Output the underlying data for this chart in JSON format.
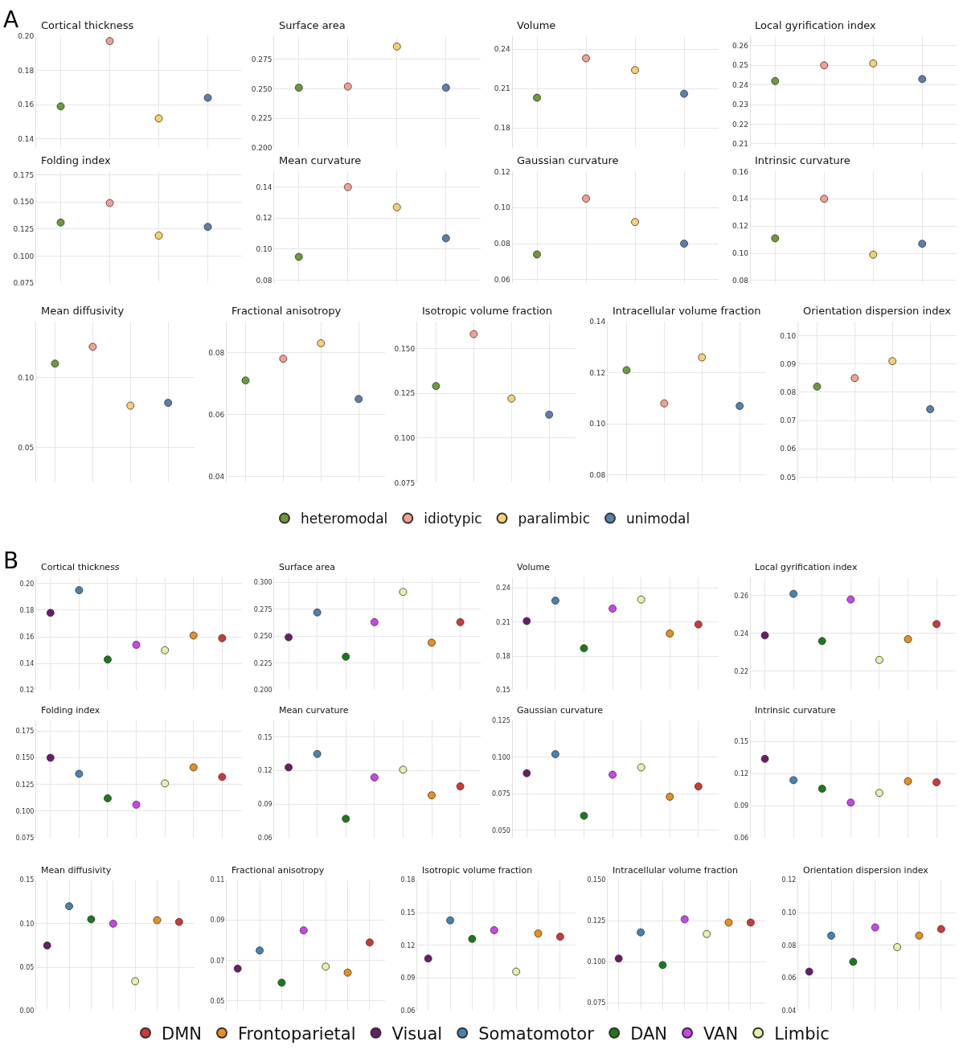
{
  "chart_data": [
    {
      "type": "scatter",
      "title": "Cortical thickness",
      "annotations": [
        "A"
      ],
      "categories": [
        null,
        null,
        null,
        null
      ],
      "ylim": [
        0.135,
        0.2
      ],
      "yticks": [
        0.14,
        0.16,
        0.18,
        {
          "value": 0.2,
          "label": "0.20"
        }
      ],
      "grid": true,
      "marker": "circle",
      "legend": "bottom",
      "series": [
        {
          "name": "heteromodal",
          "color": "#6a9a3a",
          "values": [
            0.159,
            null,
            null,
            null
          ]
        },
        {
          "name": "idiotypic",
          "color": "#f4a090",
          "values": [
            null,
            0.197,
            null,
            null
          ]
        },
        {
          "name": "paralimbic",
          "color": "#f8d070",
          "values": [
            null,
            null,
            0.152,
            null
          ]
        },
        {
          "name": "unimodal",
          "color": "#5a7fb0",
          "values": [
            null,
            null,
            null,
            0.164
          ]
        }
      ]
    },
    {
      "type": "scatter",
      "title": "Surface area",
      "categories": [
        null,
        null,
        null,
        null
      ],
      "ylim": [
        0.2,
        0.295
      ],
      "yticks": [
        {
          "value": 0.2,
          "label": "0.200"
        },
        0.225,
        {
          "value": 0.25,
          "label": "0.250"
        },
        0.275
      ],
      "grid": true,
      "marker": "circle",
      "series": [
        {
          "color": "#6a9a3a",
          "values": [
            0.251,
            null,
            null,
            null
          ]
        },
        {
          "color": "#f4a090",
          "values": [
            null,
            0.252,
            null,
            null
          ]
        },
        {
          "color": "#f8d070",
          "values": [
            null,
            null,
            0.286,
            null
          ]
        },
        {
          "color": "#5a7fb0",
          "values": [
            null,
            null,
            null,
            0.251
          ]
        }
      ]
    },
    {
      "type": "scatter",
      "title": "Volume",
      "categories": [
        null,
        null,
        null,
        null
      ],
      "ylim": [
        0.165,
        0.25
      ],
      "yticks": [
        0.18,
        0.21,
        0.24
      ],
      "grid": true,
      "marker": "circle",
      "series": [
        {
          "color": "#6a9a3a",
          "values": [
            0.203,
            null,
            null,
            null
          ]
        },
        {
          "color": "#f4a090",
          "values": [
            null,
            0.233,
            null,
            null
          ]
        },
        {
          "color": "#f8d070",
          "values": [
            null,
            null,
            0.224,
            null
          ]
        },
        {
          "color": "#5a7fb0",
          "values": [
            null,
            null,
            null,
            0.206
          ]
        }
      ]
    },
    {
      "type": "scatter",
      "title": "Local gyrification index",
      "categories": [
        null,
        null,
        null,
        null
      ],
      "ylim": [
        0.208,
        0.265
      ],
      "yticks": [
        0.21,
        0.22,
        0.23,
        0.24,
        0.25,
        0.26
      ],
      "grid": true,
      "marker": "circle",
      "series": [
        {
          "color": "#6a9a3a",
          "values": [
            0.242,
            null,
            null,
            null
          ]
        },
        {
          "color": "#f4a090",
          "values": [
            null,
            0.25,
            null,
            null
          ]
        },
        {
          "color": "#f8d070",
          "values": [
            null,
            null,
            0.251,
            null
          ]
        },
        {
          "color": "#5a7fb0",
          "values": [
            null,
            null,
            null,
            0.243
          ]
        }
      ]
    },
    {
      "type": "scatter",
      "title": "Folding index",
      "categories": [
        null,
        null,
        null,
        null
      ],
      "ylim": [
        0.075,
        0.178
      ],
      "yticks": [
        0.075,
        {
          "value": 0.1,
          "label": "0.100"
        },
        0.125,
        {
          "value": 0.15,
          "label": "0.150"
        },
        0.175
      ],
      "grid": true,
      "marker": "circle",
      "series": [
        {
          "color": "#6a9a3a",
          "values": [
            0.131,
            null,
            null,
            null
          ]
        },
        {
          "color": "#f4a090",
          "values": [
            null,
            0.149,
            null,
            null
          ]
        },
        {
          "color": "#f8d070",
          "values": [
            null,
            null,
            0.119,
            null
          ]
        },
        {
          "color": "#5a7fb0",
          "values": [
            null,
            null,
            null,
            0.127
          ]
        }
      ]
    },
    {
      "type": "scatter",
      "title": "Mean curvature",
      "categories": [
        null,
        null,
        null,
        null
      ],
      "ylim": [
        0.078,
        0.15
      ],
      "yticks": [
        0.08,
        {
          "value": 0.1,
          "label": "0.10"
        },
        0.12,
        0.14
      ],
      "grid": true,
      "marker": "circle",
      "series": [
        {
          "color": "#6a9a3a",
          "values": [
            0.095,
            null,
            null,
            null
          ]
        },
        {
          "color": "#f4a090",
          "values": [
            null,
            0.14,
            null,
            null
          ]
        },
        {
          "color": "#f8d070",
          "values": [
            null,
            null,
            0.127,
            null
          ]
        },
        {
          "color": "#5a7fb0",
          "values": [
            null,
            null,
            null,
            0.107
          ]
        }
      ]
    },
    {
      "type": "scatter",
      "title": "Gaussian curvature",
      "categories": [
        null,
        null,
        null,
        null
      ],
      "ylim": [
        0.058,
        0.12
      ],
      "yticks": [
        0.06,
        0.08,
        {
          "value": 0.1,
          "label": "0.10"
        },
        0.12
      ],
      "grid": true,
      "marker": "circle",
      "series": [
        {
          "color": "#6a9a3a",
          "values": [
            0.074,
            null,
            null,
            null
          ]
        },
        {
          "color": "#f4a090",
          "values": [
            null,
            0.105,
            null,
            null
          ]
        },
        {
          "color": "#f8d070",
          "values": [
            null,
            null,
            0.092,
            null
          ]
        },
        {
          "color": "#5a7fb0",
          "values": [
            null,
            null,
            null,
            0.08
          ]
        }
      ]
    },
    {
      "type": "scatter",
      "title": "Intrinsic curvature",
      "categories": [
        null,
        null,
        null,
        null
      ],
      "ylim": [
        0.078,
        0.16
      ],
      "yticks": [
        0.08,
        {
          "value": 0.1,
          "label": "0.10"
        },
        0.12,
        0.14,
        0.16
      ],
      "grid": true,
      "marker": "circle",
      "series": [
        {
          "color": "#6a9a3a",
          "values": [
            0.111,
            null,
            null,
            null
          ]
        },
        {
          "color": "#f4a090",
          "values": [
            null,
            0.14,
            null,
            null
          ]
        },
        {
          "color": "#f8d070",
          "values": [
            null,
            null,
            0.099,
            null
          ]
        },
        {
          "color": "#5a7fb0",
          "values": [
            null,
            null,
            null,
            0.107
          ]
        }
      ]
    },
    {
      "type": "scatter",
      "title": "Mean diffusivity",
      "categories": [
        null,
        null,
        null,
        null
      ],
      "ylim": [
        0.025,
        0.14
      ],
      "yticks": [
        0.05,
        {
          "value": 0.1,
          "label": "0.10"
        }
      ],
      "grid": true,
      "marker": "circle",
      "series": [
        {
          "color": "#6a9a3a",
          "values": [
            0.11,
            null,
            null,
            null
          ]
        },
        {
          "color": "#f4a090",
          "values": [
            null,
            0.122,
            null,
            null
          ]
        },
        {
          "color": "#f8d070",
          "values": [
            null,
            null,
            0.08,
            null
          ]
        },
        {
          "color": "#5a7fb0",
          "values": [
            null,
            null,
            null,
            0.082
          ]
        }
      ]
    },
    {
      "type": "scatter",
      "title": "Fractional anisotropy",
      "categories": [
        null,
        null,
        null,
        null
      ],
      "ylim": [
        0.038,
        0.09
      ],
      "yticks": [
        0.04,
        0.06,
        0.08
      ],
      "grid": true,
      "marker": "circle",
      "series": [
        {
          "color": "#6a9a3a",
          "values": [
            0.071,
            null,
            null,
            null
          ]
        },
        {
          "color": "#f4a090",
          "values": [
            null,
            0.078,
            null,
            null
          ]
        },
        {
          "color": "#f8d070",
          "values": [
            null,
            null,
            0.083,
            null
          ]
        },
        {
          "color": "#5a7fb0",
          "values": [
            null,
            null,
            null,
            0.065
          ]
        }
      ]
    },
    {
      "type": "scatter",
      "title": "Isotropic volume fraction",
      "categories": [
        null,
        null,
        null,
        null
      ],
      "ylim": [
        0.075,
        0.165
      ],
      "yticks": [
        0.075,
        {
          "value": 0.1,
          "label": "0.100"
        },
        0.125,
        {
          "value": 0.15,
          "label": "0.150"
        }
      ],
      "grid": true,
      "marker": "circle",
      "series": [
        {
          "color": "#6a9a3a",
          "values": [
            0.129,
            null,
            null,
            null
          ]
        },
        {
          "color": "#f4a090",
          "values": [
            null,
            0.158,
            null,
            null
          ]
        },
        {
          "color": "#f8d070",
          "values": [
            null,
            null,
            0.122,
            null
          ]
        },
        {
          "color": "#5a7fb0",
          "values": [
            null,
            null,
            null,
            0.113
          ]
        }
      ]
    },
    {
      "type": "scatter",
      "title": "Intracellular volume fraction",
      "categories": [
        null,
        null,
        null,
        null
      ],
      "ylim": [
        0.077,
        0.14
      ],
      "yticks": [
        0.08,
        {
          "value": 0.1,
          "label": "0.10"
        },
        0.12,
        0.14
      ],
      "grid": true,
      "marker": "circle",
      "series": [
        {
          "color": "#6a9a3a",
          "values": [
            0.121,
            null,
            null,
            null
          ]
        },
        {
          "color": "#f4a090",
          "values": [
            null,
            0.108,
            null,
            null
          ]
        },
        {
          "color": "#f8d070",
          "values": [
            null,
            null,
            0.126,
            null
          ]
        },
        {
          "color": "#5a7fb0",
          "values": [
            null,
            null,
            null,
            0.107
          ]
        }
      ]
    },
    {
      "type": "scatter",
      "title": "Orientation dispersion index",
      "categories": [
        null,
        null,
        null,
        null
      ],
      "ylim": [
        0.048,
        0.105
      ],
      "yticks": [
        0.05,
        0.06,
        0.07,
        0.08,
        0.09,
        {
          "value": 0.1,
          "label": "0.10"
        }
      ],
      "grid": true,
      "marker": "circle",
      "series": [
        {
          "color": "#6a9a3a",
          "values": [
            0.082,
            null,
            null,
            null
          ]
        },
        {
          "color": "#f4a090",
          "values": [
            null,
            0.085,
            null,
            null
          ]
        },
        {
          "color": "#f8d070",
          "values": [
            null,
            null,
            0.091,
            null
          ]
        },
        {
          "color": "#5a7fb0",
          "values": [
            null,
            null,
            null,
            0.074
          ]
        }
      ]
    },
    {
      "type": "scatter",
      "title": "Cortical thickness",
      "annotations": [
        "B"
      ],
      "categories": [
        null,
        null,
        null,
        null,
        null,
        null,
        null
      ],
      "ylim": [
        0.12,
        0.205
      ],
      "yticks": [
        0.12,
        0.14,
        0.16,
        0.18,
        {
          "value": 0.2,
          "label": "0.20"
        }
      ],
      "grid": true,
      "marker": "circle",
      "legend": "bottom",
      "series": [
        {
          "name": "DMN",
          "color": "#d03838",
          "values": [
            null,
            null,
            null,
            null,
            null,
            null,
            0.159
          ]
        },
        {
          "name": "Frontoparietal",
          "color": "#e8901a",
          "values": [
            null,
            null,
            null,
            null,
            null,
            0.161,
            null
          ]
        },
        {
          "name": "Visual",
          "color": "#6a1b6a",
          "values": [
            0.178,
            null,
            null,
            null,
            null,
            null,
            null
          ]
        },
        {
          "name": "Somatomotor",
          "color": "#4682b4",
          "values": [
            null,
            0.195,
            null,
            null,
            null,
            null,
            null
          ]
        },
        {
          "name": "DAN",
          "color": "#1a7a1a",
          "values": [
            null,
            null,
            0.143,
            null,
            null,
            null,
            null
          ]
        },
        {
          "name": "VAN",
          "color": "#cc44ee",
          "values": [
            null,
            null,
            null,
            0.154,
            null,
            null,
            null
          ]
        },
        {
          "name": "Limbic",
          "color": "#e2f2a8",
          "values": [
            null,
            null,
            null,
            null,
            0.15,
            null,
            null
          ]
        }
      ]
    },
    {
      "type": "scatter",
      "title": "Surface area",
      "categories": [
        null,
        null,
        null,
        null,
        null,
        null,
        null
      ],
      "ylim": [
        0.2,
        0.305
      ],
      "yticks": [
        {
          "value": 0.2,
          "label": "0.200"
        },
        0.225,
        {
          "value": 0.25,
          "label": "0.250"
        },
        0.275,
        {
          "value": 0.3,
          "label": "0.300"
        }
      ],
      "grid": true,
      "marker": "circle",
      "series": [
        {
          "color": "#d03838",
          "values": [
            null,
            null,
            null,
            null,
            null,
            null,
            0.263
          ]
        },
        {
          "color": "#e8901a",
          "values": [
            null,
            null,
            null,
            null,
            null,
            0.244,
            null
          ]
        },
        {
          "color": "#6a1b6a",
          "values": [
            0.249,
            null,
            null,
            null,
            null,
            null,
            null
          ]
        },
        {
          "color": "#4682b4",
          "values": [
            null,
            0.272,
            null,
            null,
            null,
            null,
            null
          ]
        },
        {
          "color": "#1a7a1a",
          "values": [
            null,
            null,
            0.231,
            null,
            null,
            null,
            null
          ]
        },
        {
          "color": "#cc44ee",
          "values": [
            null,
            null,
            null,
            0.263,
            null,
            null,
            null
          ]
        },
        {
          "color": "#e2f2a8",
          "values": [
            null,
            null,
            null,
            null,
            0.291,
            null,
            null
          ]
        }
      ]
    },
    {
      "type": "scatter",
      "title": "Volume",
      "categories": [
        null,
        null,
        null,
        null,
        null,
        null,
        null
      ],
      "ylim": [
        0.15,
        0.25
      ],
      "yticks": [
        0.15,
        0.18,
        0.21,
        0.24
      ],
      "grid": true,
      "marker": "circle",
      "series": [
        {
          "color": "#d03838",
          "values": [
            null,
            null,
            null,
            null,
            null,
            null,
            0.208
          ]
        },
        {
          "color": "#e8901a",
          "values": [
            null,
            null,
            null,
            null,
            null,
            0.2,
            null
          ]
        },
        {
          "color": "#6a1b6a",
          "values": [
            0.211,
            null,
            null,
            null,
            null,
            null,
            null
          ]
        },
        {
          "color": "#4682b4",
          "values": [
            null,
            0.229,
            null,
            null,
            null,
            null,
            null
          ]
        },
        {
          "color": "#1a7a1a",
          "values": [
            null,
            null,
            0.187,
            null,
            null,
            null,
            null
          ]
        },
        {
          "color": "#cc44ee",
          "values": [
            null,
            null,
            null,
            0.222,
            null,
            null,
            null
          ]
        },
        {
          "color": "#e2f2a8",
          "values": [
            null,
            null,
            null,
            null,
            0.23,
            null,
            null
          ]
        }
      ]
    },
    {
      "type": "scatter",
      "title": "Local gyrification index",
      "categories": [
        null,
        null,
        null,
        null,
        null,
        null,
        null
      ],
      "ylim": [
        0.21,
        0.27
      ],
      "yticks": [
        0.22,
        0.24,
        0.26
      ],
      "grid": true,
      "marker": "circle",
      "series": [
        {
          "color": "#d03838",
          "values": [
            null,
            null,
            null,
            null,
            null,
            null,
            0.245
          ]
        },
        {
          "color": "#e8901a",
          "values": [
            null,
            null,
            null,
            null,
            null,
            0.237,
            null
          ]
        },
        {
          "color": "#6a1b6a",
          "values": [
            0.239,
            null,
            null,
            null,
            null,
            null,
            null
          ]
        },
        {
          "color": "#4682b4",
          "values": [
            null,
            0.261,
            null,
            null,
            null,
            null,
            null
          ]
        },
        {
          "color": "#1a7a1a",
          "values": [
            null,
            null,
            0.236,
            null,
            null,
            null,
            null
          ]
        },
        {
          "color": "#cc44ee",
          "values": [
            null,
            null,
            null,
            0.258,
            null,
            null,
            null
          ]
        },
        {
          "color": "#e2f2a8",
          "values": [
            null,
            null,
            null,
            null,
            0.226,
            null,
            null
          ]
        }
      ]
    },
    {
      "type": "scatter",
      "title": "Folding index",
      "categories": [
        null,
        null,
        null,
        null,
        null,
        null,
        null
      ],
      "ylim": [
        0.075,
        0.185
      ],
      "yticks": [
        0.075,
        {
          "value": 0.1,
          "label": "0.100"
        },
        0.125,
        {
          "value": 0.15,
          "label": "0.150"
        },
        0.175
      ],
      "grid": true,
      "marker": "circle",
      "series": [
        {
          "color": "#d03838",
          "values": [
            null,
            null,
            null,
            null,
            null,
            null,
            0.132
          ]
        },
        {
          "color": "#e8901a",
          "values": [
            null,
            null,
            null,
            null,
            null,
            0.141,
            null
          ]
        },
        {
          "color": "#6a1b6a",
          "values": [
            0.15,
            null,
            null,
            null,
            null,
            null,
            null
          ]
        },
        {
          "color": "#4682b4",
          "values": [
            null,
            0.135,
            null,
            null,
            null,
            null,
            null
          ]
        },
        {
          "color": "#1a7a1a",
          "values": [
            null,
            null,
            0.112,
            null,
            null,
            null,
            null
          ]
        },
        {
          "color": "#cc44ee",
          "values": [
            null,
            null,
            null,
            0.106,
            null,
            null,
            null
          ]
        },
        {
          "color": "#e2f2a8",
          "values": [
            null,
            null,
            null,
            null,
            0.126,
            null,
            null
          ]
        }
      ]
    },
    {
      "type": "scatter",
      "title": "Mean curvature",
      "categories": [
        null,
        null,
        null,
        null,
        null,
        null,
        null
      ],
      "ylim": [
        0.06,
        0.165
      ],
      "yticks": [
        0.06,
        0.09,
        0.12,
        0.15
      ],
      "grid": true,
      "marker": "circle",
      "series": [
        {
          "color": "#d03838",
          "values": [
            null,
            null,
            null,
            null,
            null,
            null,
            0.106
          ]
        },
        {
          "color": "#e8901a",
          "values": [
            null,
            null,
            null,
            null,
            null,
            0.098,
            null
          ]
        },
        {
          "color": "#6a1b6a",
          "values": [
            0.123,
            null,
            null,
            null,
            null,
            null,
            null
          ]
        },
        {
          "color": "#4682b4",
          "values": [
            null,
            0.135,
            null,
            null,
            null,
            null,
            null
          ]
        },
        {
          "color": "#1a7a1a",
          "values": [
            null,
            null,
            0.077,
            null,
            null,
            null,
            null
          ]
        },
        {
          "color": "#cc44ee",
          "values": [
            null,
            null,
            null,
            0.114,
            null,
            null,
            null
          ]
        },
        {
          "color": "#e2f2a8",
          "values": [
            null,
            null,
            null,
            null,
            0.121,
            null,
            null
          ]
        }
      ]
    },
    {
      "type": "scatter",
      "title": "Gaussian curvature",
      "categories": [
        null,
        null,
        null,
        null,
        null,
        null,
        null
      ],
      "ylim": [
        0.045,
        0.125
      ],
      "yticks": [
        {
          "value": 0.05,
          "label": "0.050"
        },
        0.075,
        {
          "value": 0.1,
          "label": "0.100"
        },
        0.125
      ],
      "grid": true,
      "marker": "circle",
      "series": [
        {
          "color": "#d03838",
          "values": [
            null,
            null,
            null,
            null,
            null,
            null,
            0.08
          ]
        },
        {
          "color": "#e8901a",
          "values": [
            null,
            null,
            null,
            null,
            null,
            0.073,
            null
          ]
        },
        {
          "color": "#6a1b6a",
          "values": [
            0.089,
            null,
            null,
            null,
            null,
            null,
            null
          ]
        },
        {
          "color": "#4682b4",
          "values": [
            null,
            0.102,
            null,
            null,
            null,
            null,
            null
          ]
        },
        {
          "color": "#1a7a1a",
          "values": [
            null,
            null,
            0.06,
            null,
            null,
            null,
            null
          ]
        },
        {
          "color": "#cc44ee",
          "values": [
            null,
            null,
            null,
            0.088,
            null,
            null,
            null
          ]
        },
        {
          "color": "#e2f2a8",
          "values": [
            null,
            null,
            null,
            null,
            0.093,
            null,
            null
          ]
        }
      ]
    },
    {
      "type": "scatter",
      "title": "Intrinsic curvature",
      "categories": [
        null,
        null,
        null,
        null,
        null,
        null,
        null
      ],
      "ylim": [
        0.06,
        0.17
      ],
      "yticks": [
        0.06,
        0.09,
        0.12,
        0.15
      ],
      "grid": true,
      "marker": "circle",
      "series": [
        {
          "color": "#d03838",
          "values": [
            null,
            null,
            null,
            null,
            null,
            null,
            0.112
          ]
        },
        {
          "color": "#e8901a",
          "values": [
            null,
            null,
            null,
            null,
            null,
            0.113,
            null
          ]
        },
        {
          "color": "#6a1b6a",
          "values": [
            0.134,
            null,
            null,
            null,
            null,
            null,
            null
          ]
        },
        {
          "color": "#4682b4",
          "values": [
            null,
            0.114,
            null,
            null,
            null,
            null,
            null
          ]
        },
        {
          "color": "#1a7a1a",
          "values": [
            null,
            null,
            0.106,
            null,
            null,
            null,
            null
          ]
        },
        {
          "color": "#cc44ee",
          "values": [
            null,
            null,
            null,
            0.093,
            null,
            null,
            null
          ]
        },
        {
          "color": "#e2f2a8",
          "values": [
            null,
            null,
            null,
            null,
            0.102,
            null,
            null
          ]
        }
      ]
    },
    {
      "type": "scatter",
      "title": "Mean diffusivity",
      "categories": [
        null,
        null,
        null,
        null,
        null,
        null,
        null
      ],
      "ylim": [
        0,
        0.15
      ],
      "yticks": [
        {
          "value": 0,
          "label": "0.00"
        },
        0.05,
        {
          "value": 0.1,
          "label": "0.10"
        },
        0.15
      ],
      "grid": true,
      "marker": "circle",
      "series": [
        {
          "color": "#d03838",
          "values": [
            null,
            null,
            null,
            null,
            null,
            null,
            0.102
          ]
        },
        {
          "color": "#e8901a",
          "values": [
            null,
            null,
            null,
            null,
            null,
            0.104,
            null
          ]
        },
        {
          "color": "#6a1b6a",
          "values": [
            0.075,
            null,
            null,
            null,
            null,
            null,
            null
          ]
        },
        {
          "color": "#4682b4",
          "values": [
            null,
            0.12,
            null,
            null,
            null,
            null,
            null
          ]
        },
        {
          "color": "#1a7a1a",
          "values": [
            null,
            null,
            0.105,
            null,
            null,
            null,
            null
          ]
        },
        {
          "color": "#cc44ee",
          "values": [
            null,
            null,
            null,
            0.1,
            null,
            null,
            null
          ]
        },
        {
          "color": "#e2f2a8",
          "values": [
            null,
            null,
            null,
            null,
            0.034,
            null,
            null
          ]
        }
      ]
    },
    {
      "type": "scatter",
      "title": "Fractional anisotropy",
      "categories": [
        null,
        null,
        null,
        null,
        null,
        null,
        null
      ],
      "ylim": [
        0.045,
        0.11
      ],
      "yticks": [
        0.05,
        0.07,
        0.09,
        0.11
      ],
      "grid": true,
      "marker": "circle",
      "series": [
        {
          "color": "#d03838",
          "values": [
            null,
            null,
            null,
            null,
            null,
            null,
            0.079
          ]
        },
        {
          "color": "#e8901a",
          "values": [
            null,
            null,
            null,
            null,
            null,
            0.064,
            null
          ]
        },
        {
          "color": "#6a1b6a",
          "values": [
            0.066,
            null,
            null,
            null,
            null,
            null,
            null
          ]
        },
        {
          "color": "#4682b4",
          "values": [
            null,
            0.075,
            null,
            null,
            null,
            null,
            null
          ]
        },
        {
          "color": "#1a7a1a",
          "values": [
            null,
            null,
            0.059,
            null,
            null,
            null,
            null
          ]
        },
        {
          "color": "#cc44ee",
          "values": [
            null,
            null,
            null,
            0.085,
            null,
            null,
            null
          ]
        },
        {
          "color": "#e2f2a8",
          "values": [
            null,
            null,
            null,
            null,
            0.067,
            null,
            null
          ]
        }
      ]
    },
    {
      "type": "scatter",
      "title": "Isotropic volume fraction",
      "categories": [
        null,
        null,
        null,
        null,
        null,
        null,
        null
      ],
      "ylim": [
        0.06,
        0.18
      ],
      "yticks": [
        0.06,
        0.09,
        0.12,
        0.15,
        0.18
      ],
      "grid": true,
      "marker": "circle",
      "series": [
        {
          "color": "#d03838",
          "values": [
            null,
            null,
            null,
            null,
            null,
            null,
            0.128
          ]
        },
        {
          "color": "#e8901a",
          "values": [
            null,
            null,
            null,
            null,
            null,
            0.131,
            null
          ]
        },
        {
          "color": "#6a1b6a",
          "values": [
            0.108,
            null,
            null,
            null,
            null,
            null,
            null
          ]
        },
        {
          "color": "#4682b4",
          "values": [
            null,
            0.143,
            null,
            null,
            null,
            null,
            null
          ]
        },
        {
          "color": "#1a7a1a",
          "values": [
            null,
            null,
            0.126,
            null,
            null,
            null,
            null
          ]
        },
        {
          "color": "#cc44ee",
          "values": [
            null,
            null,
            null,
            0.134,
            null,
            null,
            null
          ]
        },
        {
          "color": "#e2f2a8",
          "values": [
            null,
            null,
            null,
            null,
            0.096,
            null,
            null
          ]
        }
      ]
    },
    {
      "type": "scatter",
      "title": "Intracellular volume fraction",
      "categories": [
        null,
        null,
        null,
        null,
        null,
        null,
        null
      ],
      "ylim": [
        0.07,
        0.15
      ],
      "yticks": [
        0.075,
        {
          "value": 0.1,
          "label": "0.100"
        },
        0.125,
        {
          "value": 0.15,
          "label": "0.150"
        }
      ],
      "grid": true,
      "marker": "circle",
      "series": [
        {
          "color": "#d03838",
          "values": [
            null,
            null,
            null,
            null,
            null,
            null,
            0.124
          ]
        },
        {
          "color": "#e8901a",
          "values": [
            null,
            null,
            null,
            null,
            null,
            0.124,
            null
          ]
        },
        {
          "color": "#6a1b6a",
          "values": [
            0.102,
            null,
            null,
            null,
            null,
            null,
            null
          ]
        },
        {
          "color": "#4682b4",
          "values": [
            null,
            0.118,
            null,
            null,
            null,
            null,
            null
          ]
        },
        {
          "color": "#1a7a1a",
          "values": [
            null,
            null,
            0.098,
            null,
            null,
            null,
            null
          ]
        },
        {
          "color": "#cc44ee",
          "values": [
            null,
            null,
            null,
            0.126,
            null,
            null,
            null
          ]
        },
        {
          "color": "#e2f2a8",
          "values": [
            null,
            null,
            null,
            null,
            0.117,
            null,
            null
          ]
        }
      ]
    },
    {
      "type": "scatter",
      "title": "Orientation dispersion index",
      "categories": [
        null,
        null,
        null,
        null,
        null,
        null,
        null
      ],
      "ylim": [
        0.04,
        0.12
      ],
      "yticks": [
        0.04,
        0.06,
        0.08,
        {
          "value": 0.1,
          "label": "0.10"
        },
        0.12
      ],
      "grid": true,
      "marker": "circle",
      "series": [
        {
          "color": "#d03838",
          "values": [
            null,
            null,
            null,
            null,
            null,
            null,
            0.09
          ]
        },
        {
          "color": "#e8901a",
          "values": [
            null,
            null,
            null,
            null,
            null,
            0.086,
            null
          ]
        },
        {
          "color": "#6a1b6a",
          "values": [
            0.064,
            null,
            null,
            null,
            null,
            null,
            null
          ]
        },
        {
          "color": "#4682b4",
          "values": [
            null,
            0.086,
            null,
            null,
            null,
            null,
            null
          ]
        },
        {
          "color": "#1a7a1a",
          "values": [
            null,
            null,
            0.07,
            null,
            null,
            null,
            null
          ]
        },
        {
          "color": "#cc44ee",
          "values": [
            null,
            null,
            null,
            0.091,
            null,
            null,
            null
          ]
        },
        {
          "color": "#e2f2a8",
          "values": [
            null,
            null,
            null,
            null,
            0.079,
            null,
            null
          ]
        }
      ]
    }
  ]
}
